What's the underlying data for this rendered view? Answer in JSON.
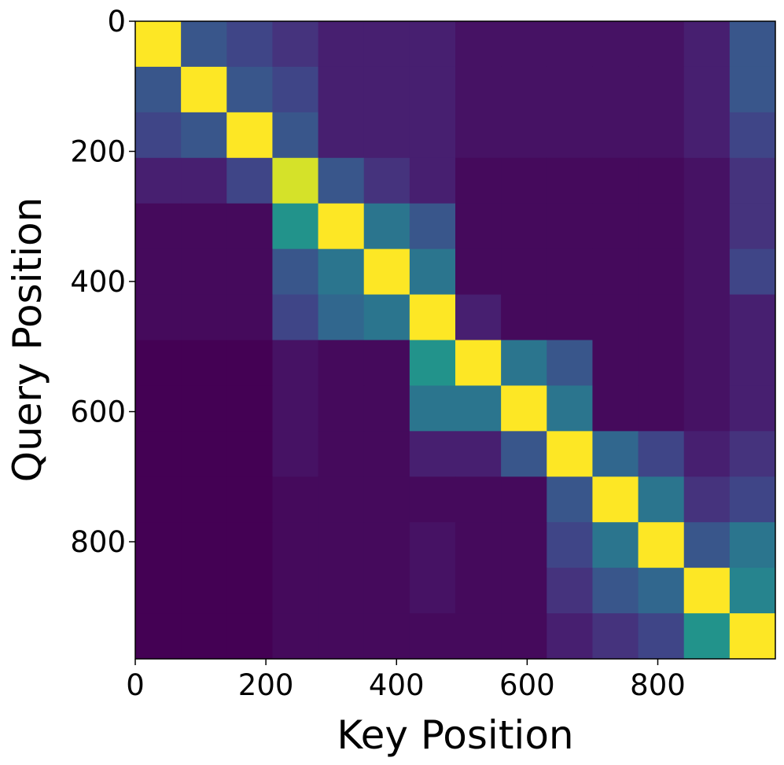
{
  "chart_data": {
    "type": "heatmap",
    "colormap": "viridis",
    "xlabel": "Key Position",
    "ylabel": "Query Position",
    "xlim": [
      0,
      980
    ],
    "ylim": [
      980,
      0
    ],
    "xticks": [
      0,
      200,
      400,
      600,
      800
    ],
    "yticks": [
      0,
      200,
      400,
      600,
      800
    ],
    "xbins": [
      0,
      70,
      140,
      210,
      280,
      350,
      420,
      490,
      560,
      630,
      700,
      770,
      840,
      910,
      980
    ],
    "ybins": [
      0,
      70,
      140,
      210,
      280,
      350,
      420,
      490,
      560,
      630,
      700,
      770,
      840,
      910,
      980
    ],
    "values": [
      [
        0.9,
        0.3,
        0.25,
        0.2,
        0.15,
        0.15,
        0.15,
        0.12,
        0.12,
        0.12,
        0.12,
        0.12,
        0.15,
        0.3
      ],
      [
        0.3,
        0.9,
        0.3,
        0.25,
        0.15,
        0.15,
        0.15,
        0.12,
        0.12,
        0.12,
        0.12,
        0.12,
        0.15,
        0.3
      ],
      [
        0.25,
        0.3,
        0.9,
        0.3,
        0.15,
        0.15,
        0.15,
        0.12,
        0.12,
        0.12,
        0.12,
        0.12,
        0.15,
        0.25
      ],
      [
        0.15,
        0.15,
        0.25,
        0.85,
        0.3,
        0.2,
        0.15,
        0.1,
        0.1,
        0.1,
        0.1,
        0.1,
        0.12,
        0.2
      ],
      [
        0.1,
        0.1,
        0.1,
        0.5,
        0.9,
        0.4,
        0.3,
        0.1,
        0.1,
        0.1,
        0.1,
        0.1,
        0.12,
        0.2
      ],
      [
        0.1,
        0.1,
        0.1,
        0.3,
        0.4,
        0.9,
        0.4,
        0.1,
        0.1,
        0.1,
        0.1,
        0.1,
        0.12,
        0.25
      ],
      [
        0.1,
        0.1,
        0.1,
        0.25,
        0.35,
        0.4,
        0.9,
        0.15,
        0.1,
        0.1,
        0.1,
        0.1,
        0.12,
        0.15
      ],
      [
        0.08,
        0.08,
        0.08,
        0.12,
        0.1,
        0.1,
        0.5,
        0.9,
        0.4,
        0.3,
        0.1,
        0.1,
        0.12,
        0.15
      ],
      [
        0.08,
        0.08,
        0.08,
        0.12,
        0.1,
        0.1,
        0.4,
        0.4,
        0.9,
        0.4,
        0.1,
        0.1,
        0.12,
        0.15
      ],
      [
        0.08,
        0.08,
        0.08,
        0.12,
        0.1,
        0.1,
        0.15,
        0.15,
        0.3,
        0.9,
        0.35,
        0.25,
        0.15,
        0.2
      ],
      [
        0.08,
        0.08,
        0.08,
        0.1,
        0.1,
        0.1,
        0.1,
        0.1,
        0.1,
        0.3,
        0.9,
        0.4,
        0.2,
        0.25
      ],
      [
        0.08,
        0.08,
        0.08,
        0.1,
        0.1,
        0.1,
        0.12,
        0.1,
        0.1,
        0.25,
        0.4,
        0.9,
        0.3,
        0.4
      ],
      [
        0.08,
        0.08,
        0.08,
        0.1,
        0.1,
        0.1,
        0.12,
        0.1,
        0.1,
        0.2,
        0.3,
        0.35,
        0.9,
        0.45
      ],
      [
        0.08,
        0.08,
        0.08,
        0.1,
        0.1,
        0.1,
        0.1,
        0.1,
        0.1,
        0.15,
        0.2,
        0.25,
        0.5,
        0.9
      ]
    ]
  }
}
